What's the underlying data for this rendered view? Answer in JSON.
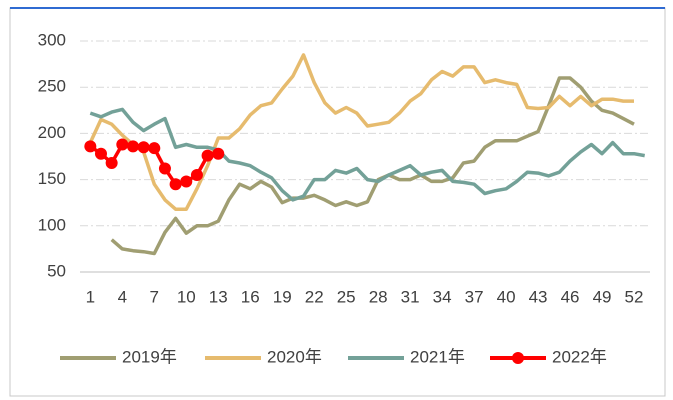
{
  "chart_data": {
    "type": "line",
    "categories": [
      1,
      null,
      null,
      4,
      null,
      null,
      7,
      null,
      null,
      10,
      null,
      null,
      13,
      null,
      null,
      16,
      null,
      null,
      19,
      null,
      null,
      22,
      null,
      null,
      25,
      null,
      null,
      28,
      null,
      null,
      31,
      null,
      null,
      34,
      null,
      null,
      37,
      null,
      null,
      40,
      null,
      null,
      43,
      null,
      null,
      46,
      null,
      null,
      49,
      null,
      null,
      52,
      null
    ],
    "series": [
      {
        "name": "2019年",
        "color": "#a09e72",
        "values": [
          null,
          null,
          85,
          75,
          73,
          72,
          70,
          93,
          108,
          92,
          100,
          100,
          105,
          128,
          145,
          140,
          148,
          142,
          125,
          130,
          130,
          133,
          128,
          122,
          126,
          122,
          126,
          150,
          155,
          150,
          150,
          155,
          148,
          148,
          152,
          168,
          170,
          185,
          192,
          192,
          192,
          197,
          202,
          230,
          260,
          260,
          250,
          235,
          225,
          222,
          216,
          210,
          null
        ]
      },
      {
        "name": "2020年",
        "color": "#e6bb6e",
        "values": [
          190,
          215,
          210,
          198,
          188,
          180,
          145,
          128,
          118,
          118,
          140,
          165,
          195,
          195,
          205,
          220,
          230,
          233,
          248,
          262,
          285,
          255,
          233,
          222,
          228,
          222,
          208,
          210,
          212,
          222,
          235,
          243,
          258,
          267,
          262,
          272,
          272,
          255,
          258,
          255,
          253,
          228,
          227,
          228,
          240,
          230,
          240,
          230,
          237,
          237,
          235,
          235,
          null
        ]
      },
      {
        "name": "2021年",
        "color": "#73a198",
        "values": [
          222,
          218,
          223,
          226,
          212,
          203,
          210,
          216,
          185,
          188,
          185,
          185,
          182,
          170,
          168,
          165,
          158,
          152,
          138,
          128,
          132,
          150,
          150,
          160,
          157,
          162,
          150,
          148,
          155,
          160,
          165,
          155,
          158,
          160,
          148,
          147,
          145,
          135,
          138,
          140,
          148,
          158,
          157,
          154,
          158,
          170,
          180,
          188,
          178,
          190,
          178,
          178,
          176
        ]
      },
      {
        "name": "2022年",
        "color": "#ff0000",
        "markers": true,
        "values": [
          186,
          178,
          168,
          188,
          186,
          185,
          184,
          162,
          145,
          148,
          155,
          176,
          178,
          null,
          null,
          null,
          null,
          null,
          null,
          null,
          null,
          null,
          null,
          null,
          null,
          null,
          null,
          null,
          null,
          null,
          null,
          null,
          null,
          null,
          null,
          null,
          null,
          null,
          null,
          null,
          null,
          null,
          null,
          null,
          null,
          null,
          null,
          null,
          null,
          null,
          null,
          null,
          null
        ]
      }
    ],
    "ylim": [
      50,
      300
    ],
    "yticks": [
      50,
      100,
      150,
      200,
      250,
      300
    ],
    "grid": true
  }
}
